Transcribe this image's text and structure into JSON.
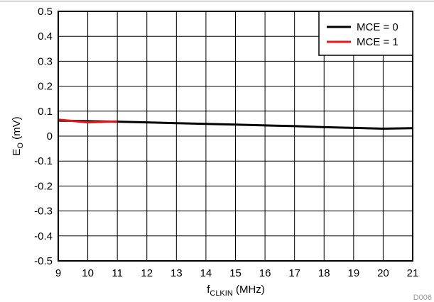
{
  "chart_data": {
    "type": "line",
    "xlabel_main": "f",
    "xlabel_sub": "CLKIN",
    "xlabel_unit": " (MHz)",
    "ylabel_main": "E",
    "ylabel_sub": "O",
    "ylabel_unit": " (mV)",
    "xlim": [
      9,
      21
    ],
    "ylim": [
      -0.5,
      0.5
    ],
    "xticks": [
      "9",
      "10",
      "11",
      "12",
      "13",
      "14",
      "15",
      "16",
      "17",
      "18",
      "19",
      "20",
      "21"
    ],
    "yticks": [
      "0.5",
      "0.4",
      "0.3",
      "0.2",
      "0.1",
      "0",
      "-0.1",
      "-0.2",
      "-0.3",
      "-0.4",
      "-0.5"
    ],
    "grid": true,
    "legend_position": "top-right",
    "series": [
      {
        "name": "MCE = 0",
        "color": "#000000",
        "x": [
          9,
          10,
          11,
          12,
          13,
          14,
          15,
          16,
          17,
          18,
          19,
          20,
          21
        ],
        "y": [
          0.062,
          0.06,
          0.058,
          0.055,
          0.052,
          0.049,
          0.046,
          0.043,
          0.04,
          0.036,
          0.033,
          0.03,
          0.032
        ]
      },
      {
        "name": "MCE = 1",
        "color": "#e8141c",
        "x": [
          9,
          10,
          11
        ],
        "y": [
          0.066,
          0.055,
          0.059
        ]
      }
    ]
  },
  "figure_id": "D006"
}
